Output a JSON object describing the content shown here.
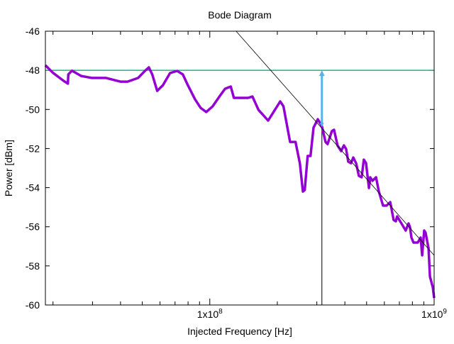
{
  "chart_data": {
    "type": "line",
    "title": "Bode Diagram",
    "xlabel": "Injected Frequency [Hz]",
    "ylabel": "Power [dBm]",
    "x_scale": "log",
    "xlim": [
      18500000.0,
      1000000000.0
    ],
    "ylim": [
      -60,
      -46
    ],
    "yticks": [
      -46,
      -48,
      -50,
      -52,
      -54,
      -56,
      -58,
      -60
    ],
    "xticks": [
      {
        "value": 100000000.0,
        "base": "1x10",
        "exp": "8"
      },
      {
        "value": 1000000000.0,
        "base": "1x10",
        "exp": "9"
      }
    ],
    "grid": false,
    "legend": "none",
    "colors": {
      "measured": "#9400d3",
      "reference": "#009e73",
      "arrow": "#56b4e9",
      "fit": "#000000"
    },
    "series": [
      {
        "x": [
          18500000.0,
          20000000.0,
          22300000.0,
          23300000.0,
          23400000.0,
          24300000.0,
          26700000.0,
          29800000.0,
          34500000.0,
          39900000.0,
          43000000.0,
          47900000.0,
          51500000.0,
          53500000.0,
          55400000.0,
          58300000.0,
          61800000.0,
          66500000.0,
          71500000.0,
          75800000.0,
          79800000.0,
          85900000.0,
          91000000.0,
          96400000.0,
          103000000.0,
          111000000.0,
          117000000.0,
          124000000.0,
          128000000.0,
          148000000.0,
          155000000.0,
          165000000.0,
          182000000.0,
          206000000.0,
          213000000.0,
          228000000.0,
          241000000.0,
          252000000.0,
          260000000.0,
          265000000.0,
          273000000.0,
          281000000.0,
          290000000.0,
          303000000.0,
          316000000.0,
          328000000.0,
          335000000.0,
          350000000.0,
          358000000.0,
          371000000.0,
          385000000.0,
          396000000.0,
          405000000.0,
          414000000.0,
          426000000.0,
          436000000.0,
          449000000.0,
          462000000.0,
          475000000.0,
          486000000.0,
          497000000.0,
          512000000.0,
          519000000.0,
          531000000.0,
          551000000.0,
          567000000.0,
          592000000.0,
          614000000.0,
          637000000.0,
          660000000.0,
          675000000.0,
          684000000.0,
          715000000.0,
          747000000.0,
          769000000.0,
          780000000.0,
          792000000.0,
          809000000.0,
          845000000.0,
          871000000.0,
          884000000.0,
          903000000.0,
          916000000.0,
          944000000.0,
          958000000.0,
          986000000.0,
          1000000000.0
        ],
        "y": [
          -47.74,
          -48.13,
          -48.54,
          -48.68,
          -48.21,
          -48.02,
          -48.29,
          -48.39,
          -48.39,
          -48.58,
          -48.58,
          -48.39,
          -48.02,
          -47.85,
          -48.21,
          -49.05,
          -48.76,
          -48.14,
          -48.03,
          -48.21,
          -48.76,
          -49.48,
          -49.92,
          -50.13,
          -49.84,
          -49.3,
          -48.94,
          -48.83,
          -49.41,
          -49.41,
          -49.34,
          -50.03,
          -50.57,
          -49.59,
          -49.84,
          -51.66,
          -51.66,
          -52.75,
          -54.2,
          -54.12,
          -52.38,
          -52.38,
          -50.93,
          -50.5,
          -50.86,
          -51.66,
          -51.77,
          -51.11,
          -51.04,
          -51.84,
          -52.13,
          -51.84,
          -52.02,
          -52.67,
          -52.75,
          -52.46,
          -52.75,
          -53.4,
          -53.47,
          -52.57,
          -52.75,
          -54.02,
          -53.47,
          -53.65,
          -53.47,
          -54.2,
          -54.92,
          -54.92,
          -54.74,
          -55.65,
          -55.72,
          -55.47,
          -55.83,
          -56.19,
          -55.83,
          -56.01,
          -56.55,
          -56.81,
          -56.81,
          -56.55,
          -57.46,
          -56.19,
          -56.3,
          -57.1,
          -58.55,
          -59.09,
          -59.64
        ]
      }
    ],
    "reference_level": -48,
    "fit_line": {
      "x": [
        131000000.0,
        1000000000.0
      ],
      "y": [
        -46,
        -57.46
      ]
    },
    "marker_frequency": 316000000.0,
    "arrow": {
      "x": 316000000.0,
      "y_from": -50.9,
      "y_to": -48
    }
  }
}
